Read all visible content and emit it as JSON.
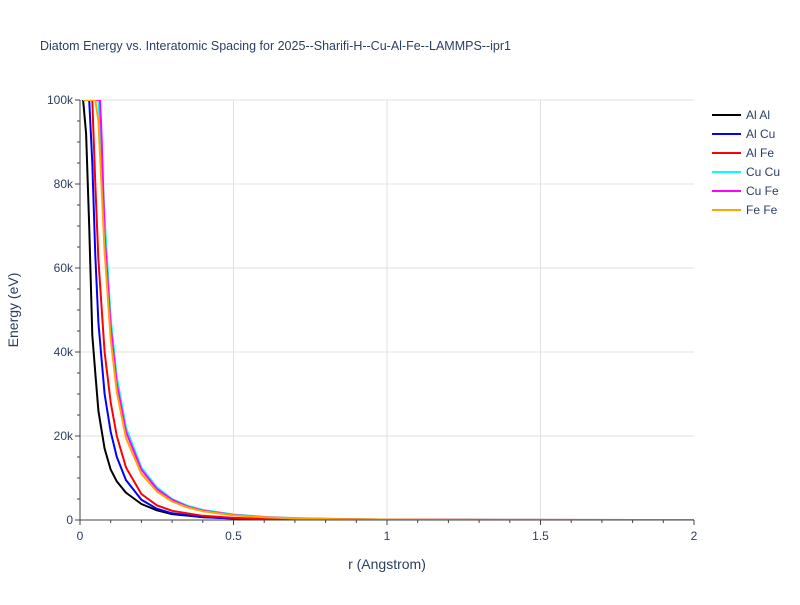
{
  "chart_data": {
    "type": "line",
    "title": "Diatom Energy vs. Interatomic Spacing for 2025--Sharifi-H--Cu-Al-Fe--LAMMPS--ipr1",
    "xlabel": "r (Angstrom)",
    "ylabel": "Energy (eV)",
    "xlim": [
      0,
      2
    ],
    "ylim": [
      0,
      100000
    ],
    "x_ticks": [
      {
        "value": 0,
        "label": "0"
      },
      {
        "value": 0.5,
        "label": "0.5"
      },
      {
        "value": 1,
        "label": "1"
      },
      {
        "value": 1.5,
        "label": "1.5"
      },
      {
        "value": 2,
        "label": "2"
      }
    ],
    "y_ticks": [
      {
        "value": 0,
        "label": "0"
      },
      {
        "value": 20000,
        "label": "20k"
      },
      {
        "value": 40000,
        "label": "40k"
      },
      {
        "value": 60000,
        "label": "60k"
      },
      {
        "value": 80000,
        "label": "80k"
      },
      {
        "value": 100000,
        "label": "100k"
      }
    ],
    "grid": true,
    "legend_position": "top-right",
    "series": [
      {
        "name": "Al Al",
        "color": "#000000",
        "x": [
          0.01,
          0.02,
          0.03,
          0.04,
          0.05,
          0.06,
          0.08,
          0.1,
          0.12,
          0.15,
          0.2,
          0.25,
          0.3,
          0.4,
          0.5,
          0.6,
          0.7,
          0.8,
          1.0,
          1.5,
          2.0
        ],
        "y": [
          100000,
          92000,
          70000,
          44000,
          35000,
          26000,
          17000,
          12000,
          9200,
          6500,
          3800,
          2300,
          1400,
          700,
          380,
          220,
          130,
          80,
          30,
          5,
          0
        ]
      },
      {
        "name": "Al Cu",
        "color": "#0000ff",
        "x": [
          0.01,
          0.03,
          0.04,
          0.05,
          0.06,
          0.08,
          0.1,
          0.12,
          0.15,
          0.2,
          0.25,
          0.3,
          0.4,
          0.5,
          0.6,
          0.7,
          0.8,
          1.0,
          1.5,
          2.0
        ],
        "y": [
          100000,
          100000,
          85000,
          63000,
          47000,
          30000,
          21000,
          15000,
          9500,
          4800,
          2700,
          1600,
          700,
          350,
          200,
          120,
          70,
          25,
          5,
          0
        ]
      },
      {
        "name": "Al Fe",
        "color": "#ff0000",
        "x": [
          0.01,
          0.04,
          0.05,
          0.06,
          0.08,
          0.1,
          0.12,
          0.15,
          0.2,
          0.25,
          0.3,
          0.4,
          0.5,
          0.6,
          0.7,
          0.8,
          1.0,
          1.5,
          2.0
        ],
        "y": [
          100000,
          100000,
          80000,
          62000,
          40000,
          28000,
          20000,
          12500,
          6200,
          3500,
          2200,
          1000,
          500,
          280,
          170,
          100,
          40,
          8,
          0
        ]
      },
      {
        "name": "Cu Cu",
        "color": "#00ffff",
        "x": [
          0.01,
          0.06,
          0.07,
          0.08,
          0.1,
          0.12,
          0.15,
          0.2,
          0.25,
          0.3,
          0.35,
          0.4,
          0.5,
          0.6,
          0.7,
          0.8,
          1.0,
          1.5,
          2.0
        ],
        "y": [
          100000,
          100000,
          88000,
          72000,
          48000,
          34000,
          22000,
          12500,
          7800,
          5000,
          3400,
          2400,
          1300,
          750,
          450,
          280,
          110,
          20,
          0
        ]
      },
      {
        "name": "Cu Fe",
        "color": "#ff00ff",
        "x": [
          0.01,
          0.06,
          0.065,
          0.07,
          0.08,
          0.1,
          0.12,
          0.15,
          0.2,
          0.25,
          0.3,
          0.35,
          0.4,
          0.5,
          0.6,
          0.7,
          0.8,
          1.0,
          1.5,
          2.0
        ],
        "y": [
          100000,
          100000,
          100000,
          92000,
          68000,
          46000,
          32500,
          21000,
          12000,
          7400,
          4800,
          3200,
          2250,
          1200,
          700,
          420,
          260,
          100,
          18,
          0
        ]
      },
      {
        "name": "Fe Fe",
        "color": "#ffa500",
        "x": [
          0.01,
          0.03,
          0.05,
          0.06,
          0.08,
          0.1,
          0.12,
          0.15,
          0.2,
          0.25,
          0.3,
          0.35,
          0.4,
          0.5,
          0.6,
          0.7,
          0.8,
          1.0,
          1.5,
          2.0
        ],
        "y": [
          100000,
          100000,
          100000,
          95000,
          64000,
          43000,
          30500,
          19500,
          11000,
          6800,
          4400,
          3000,
          2100,
          1100,
          650,
          390,
          240,
          90,
          15,
          0
        ]
      }
    ]
  }
}
